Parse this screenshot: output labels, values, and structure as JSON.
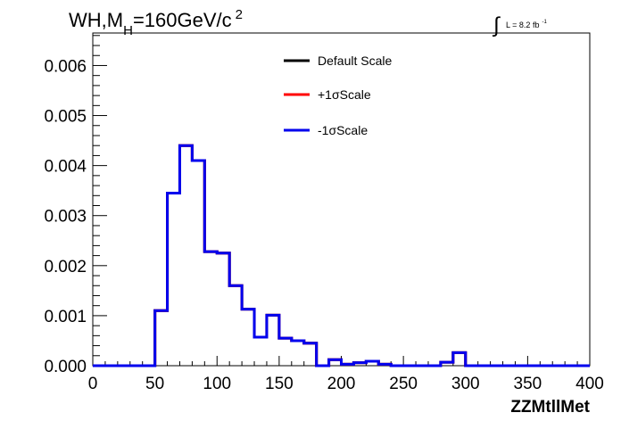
{
  "chart_data": {
    "type": "line",
    "title": {
      "prefix": "WH,M",
      "subscript": "H",
      "suffix": "=160GeV/c",
      "superscript": "2"
    },
    "luminosity": {
      "integral_sign": "∫",
      "text": "L = 8.2 fb",
      "superscript": "-1"
    },
    "xlabel": "ZZMtllMet",
    "ylabel": "",
    "xlim": [
      0,
      400
    ],
    "ylim": [
      0,
      0.00665
    ],
    "x_ticks": [
      "0",
      "50",
      "100",
      "150",
      "200",
      "250",
      "300",
      "350",
      "400"
    ],
    "y_ticks": [
      "0.000",
      "0.001",
      "0.002",
      "0.003",
      "0.004",
      "0.005",
      "0.006"
    ],
    "legend_position": "top-center",
    "bin_width": 10,
    "bin_start": 0,
    "series": [
      {
        "name": "Default Scale",
        "color": "#000000",
        "values": [
          0,
          0,
          0,
          0,
          0,
          0.0011,
          0.00345,
          0.0044,
          0.0041,
          0.00228,
          0.00225,
          0.0016,
          0.00113,
          0.00057,
          0.00101,
          0.00055,
          0.0005,
          0.00045,
          0.0,
          0.00012,
          3e-05,
          6e-05,
          9e-05,
          3e-05,
          0,
          0,
          0,
          0,
          7e-05,
          0.00026,
          0,
          0,
          0,
          0,
          0,
          0,
          0,
          0,
          0,
          0
        ]
      },
      {
        "name": "+1σScale",
        "color": "#ff0000",
        "values": [
          0,
          0,
          0,
          0,
          0,
          0.0011,
          0.00345,
          0.0044,
          0.0041,
          0.00228,
          0.00225,
          0.0016,
          0.00113,
          0.00057,
          0.00101,
          0.00055,
          0.0005,
          0.00045,
          0.0,
          0.00012,
          3e-05,
          6e-05,
          9e-05,
          3e-05,
          0,
          0,
          0,
          0,
          7e-05,
          0.00026,
          0,
          0,
          0,
          0,
          0,
          0,
          0,
          0,
          0,
          0
        ]
      },
      {
        "name": "-1σScale",
        "color": "#0000ee",
        "values": [
          0,
          0,
          0,
          0,
          0,
          0.0011,
          0.00345,
          0.0044,
          0.0041,
          0.00228,
          0.00225,
          0.0016,
          0.00113,
          0.00057,
          0.00101,
          0.00055,
          0.0005,
          0.00045,
          0.0,
          0.00012,
          3e-05,
          6e-05,
          9e-05,
          3e-05,
          0,
          0,
          0,
          0,
          7e-05,
          0.00026,
          0,
          0,
          0,
          0,
          0,
          0,
          0,
          0,
          0,
          0
        ]
      }
    ]
  }
}
